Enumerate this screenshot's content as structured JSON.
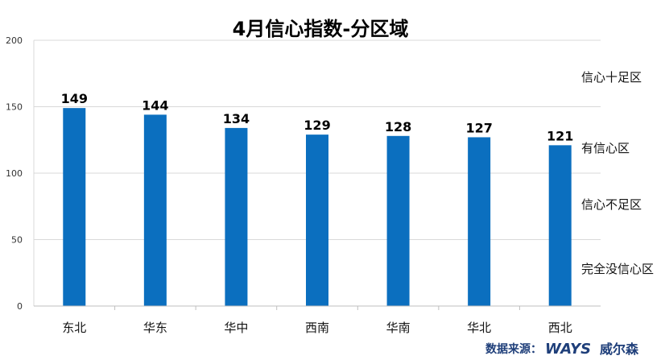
{
  "chart_data": {
    "type": "bar",
    "title": "4月信心指数-分区域",
    "categories": [
      "东北",
      "华东",
      "华中",
      "西南",
      "华南",
      "华北",
      "西北"
    ],
    "values": [
      149,
      144,
      134,
      129,
      128,
      127,
      121
    ],
    "ylim": [
      0,
      200
    ],
    "yticks": [
      0,
      50,
      100,
      150,
      200
    ],
    "xlabel": "",
    "ylabel": "",
    "grid": true,
    "bar_color": "#0b6fbf",
    "zone_labels": [
      "信心十足区",
      "有信心区",
      "信心不足区",
      "完全没信心区"
    ]
  },
  "source": {
    "label": "数据来源：",
    "brand": "WAYS",
    "brand_cn": "威尔森"
  }
}
